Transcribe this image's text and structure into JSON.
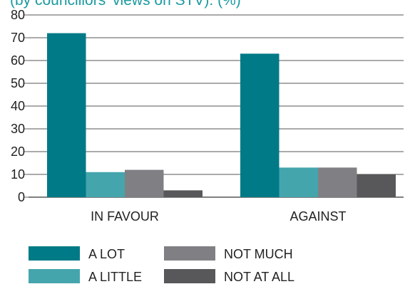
{
  "chart_data": {
    "type": "bar",
    "title": "(by councillors' views on STV): (%)",
    "categories": [
      "IN FAVOUR",
      "AGAINST"
    ],
    "series": [
      {
        "name": "A LOT",
        "values": [
          72,
          63
        ],
        "color": "#007a87"
      },
      {
        "name": "A LITTLE",
        "values": [
          11,
          13
        ],
        "color": "#45a5ad"
      },
      {
        "name": "NOT MUCH",
        "values": [
          12,
          13
        ],
        "color": "#808084"
      },
      {
        "name": "NOT AT ALL",
        "values": [
          3,
          10
        ],
        "color": "#58585a"
      }
    ],
    "ylim": [
      0,
      80
    ],
    "yticks": [
      0,
      10,
      20,
      30,
      40,
      50,
      60,
      70,
      80
    ],
    "grid": true,
    "legend_position": "bottom"
  }
}
